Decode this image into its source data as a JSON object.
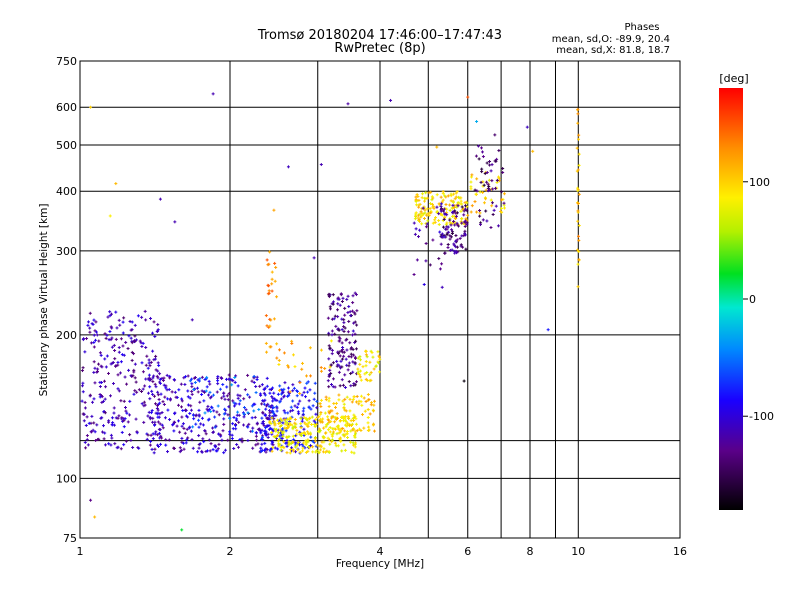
{
  "chart_data": {
    "type": "scatter",
    "title": "Tromsø 20180204 17:46:00–17:47:43",
    "subtitle": "RwPretec (8p)",
    "xlabel": "Frequency [MHz]",
    "ylabel": "Stationary phase Virtual Height [km]",
    "x_scale": "log",
    "y_scale": "log",
    "xlim": [
      1,
      16
    ],
    "ylim": [
      75,
      750
    ],
    "x_ticks": [
      1,
      2,
      4,
      6,
      8,
      10,
      16
    ],
    "x_tick_labels": [
      "1",
      "2",
      "4",
      "6",
      "8",
      "10",
      "16"
    ],
    "x_minor_grid": [
      3,
      5,
      7,
      9
    ],
    "y_ticks": [
      75,
      100,
      200,
      300,
      400,
      500,
      600,
      750
    ],
    "y_tick_labels": [
      "75",
      "100",
      "200",
      "300",
      "400",
      "500",
      "600",
      "750"
    ],
    "y_minor_grid": [
      120
    ],
    "grid": true,
    "stats": {
      "heading": "Phases",
      "line_o": "mean, sd,O: -89.9, 20.4",
      "line_x": "mean, sd,X: 81.8, 18.7"
    },
    "colorbar": {
      "label": "[deg]",
      "range": [
        -180,
        180
      ],
      "ticks": [
        100,
        0,
        -100
      ],
      "tick_labels": [
        "100",
        "0",
        "-100"
      ],
      "placement": "right"
    },
    "clusters": [
      {
        "freq": [
          1.0,
          1.45
        ],
        "height": [
          115,
          225
        ],
        "phase": -115,
        "count": 300
      },
      {
        "freq": [
          1.38,
          2.45
        ],
        "height": [
          113,
          165
        ],
        "phase": -110,
        "count": 360
      },
      {
        "freq": [
          1.65,
          2.3
        ],
        "height": [
          125,
          165
        ],
        "phase": -60,
        "count": 50
      },
      {
        "freq": [
          2.3,
          3.0
        ],
        "height": [
          113,
          160
        ],
        "phase": -85,
        "count": 190
      },
      {
        "freq": [
          2.4,
          3.6
        ],
        "height": [
          113,
          135
        ],
        "phase": 85,
        "count": 250
      },
      {
        "freq": [
          3.0,
          3.9
        ],
        "height": [
          125,
          150
        ],
        "phase": 100,
        "count": 110
      },
      {
        "freq": [
          3.15,
          3.6
        ],
        "height": [
          155,
          245
        ],
        "phase": -130,
        "count": 150
      },
      {
        "freq": [
          3.6,
          4.0
        ],
        "height": [
          160,
          185
        ],
        "phase": 90,
        "count": 40
      },
      {
        "freq": [
          2.35,
          2.5
        ],
        "height": [
          170,
          300
        ],
        "phase": 130,
        "count": 30
      },
      {
        "freq": [
          2.5,
          3.2
        ],
        "height": [
          150,
          200
        ],
        "phase": 110,
        "count": 25
      },
      {
        "freq": [
          4.7,
          6.0
        ],
        "height": [
          340,
          400
        ],
        "phase": 95,
        "count": 150
      },
      {
        "freq": [
          5.3,
          6.0
        ],
        "height": [
          295,
          375
        ],
        "phase": -135,
        "count": 90
      },
      {
        "freq": [
          4.6,
          5.4
        ],
        "height": [
          250,
          380
        ],
        "phase": -120,
        "count": 25
      },
      {
        "freq": [
          6.0,
          7.2
        ],
        "height": [
          360,
          440
        ],
        "phase": 100,
        "count": 40
      },
      {
        "freq": [
          6.2,
          7.1
        ],
        "height": [
          330,
          500
        ],
        "phase": -140,
        "count": 50
      },
      {
        "freq": [
          9.95,
          10.05
        ],
        "height": [
          230,
          620
        ],
        "phase": 110,
        "count": 30
      }
    ],
    "scatter_points": [
      {
        "x": 1.05,
        "y": 90,
        "phase": -130
      },
      {
        "x": 1.07,
        "y": 83,
        "phase": 110
      },
      {
        "x": 1.05,
        "y": 600,
        "phase": 100
      },
      {
        "x": 1.18,
        "y": 415,
        "phase": 110
      },
      {
        "x": 1.15,
        "y": 355,
        "phase": 85
      },
      {
        "x": 1.45,
        "y": 385,
        "phase": -115
      },
      {
        "x": 1.55,
        "y": 345,
        "phase": -115
      },
      {
        "x": 1.6,
        "y": 78,
        "phase": 20
      },
      {
        "x": 1.68,
        "y": 215,
        "phase": -115
      },
      {
        "x": 1.85,
        "y": 640,
        "phase": -115
      },
      {
        "x": 2.45,
        "y": 365,
        "phase": 120
      },
      {
        "x": 2.62,
        "y": 450,
        "phase": -110
      },
      {
        "x": 2.95,
        "y": 290,
        "phase": -115
      },
      {
        "x": 3.05,
        "y": 455,
        "phase": -115
      },
      {
        "x": 3.45,
        "y": 610,
        "phase": -120
      },
      {
        "x": 4.2,
        "y": 620,
        "phase": -115
      },
      {
        "x": 5.2,
        "y": 495,
        "phase": 110
      },
      {
        "x": 5.9,
        "y": 160,
        "phase": -175
      },
      {
        "x": 6.0,
        "y": 630,
        "phase": 150
      },
      {
        "x": 6.25,
        "y": 560,
        "phase": -30
      },
      {
        "x": 6.8,
        "y": 525,
        "phase": -140
      },
      {
        "x": 7.9,
        "y": 545,
        "phase": -110
      },
      {
        "x": 8.1,
        "y": 485,
        "phase": 110
      },
      {
        "x": 8.7,
        "y": 205,
        "phase": -80
      }
    ]
  }
}
